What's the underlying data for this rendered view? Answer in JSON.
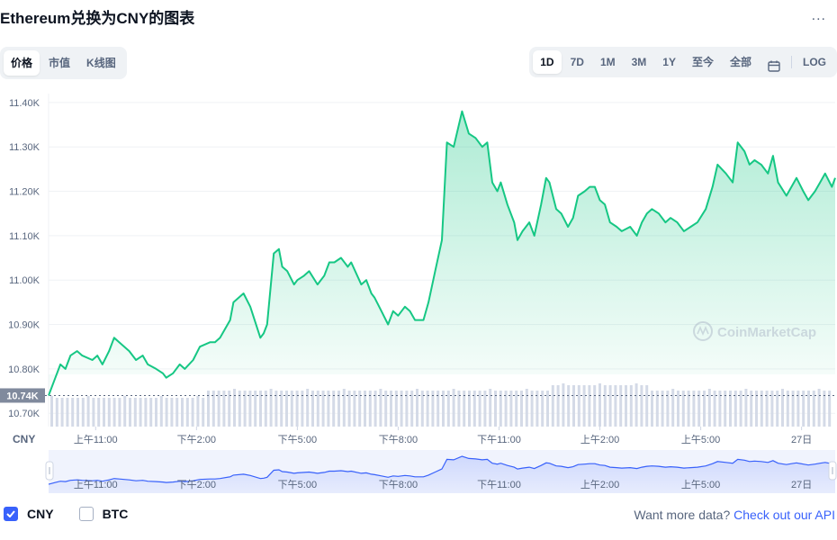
{
  "header": {
    "title": "Ethereum兑换为CNY的图表",
    "more_label": "..."
  },
  "view_tabs": [
    "价格",
    "市值",
    "K线图"
  ],
  "range_tabs": [
    "1D",
    "7D",
    "1M",
    "3M",
    "1Y",
    "至今",
    "全部"
  ],
  "log_label": "LOG",
  "watermark": "CoinMarketCap",
  "footer": {
    "options": [
      {
        "label": "CNY",
        "checked": true
      },
      {
        "label": "BTC",
        "checked": false
      }
    ],
    "promo_text": "Want more data?",
    "promo_link": "Check out our API"
  },
  "colors": {
    "line": "#16c784",
    "accent": "#3861fb",
    "nav_line": "#3861fb"
  },
  "chart_data": {
    "type": "area",
    "currency_label": "CNY",
    "current_price_label": "10.74K",
    "y_ticks": [
      "11.40K",
      "11.30K",
      "11.20K",
      "11.10K",
      "11.00K",
      "10.90K",
      "10.80K",
      "10.70K"
    ],
    "ylim": [
      10.67,
      11.42
    ],
    "x_ticks": [
      "上午11:00",
      "下午2:00",
      "下午5:00",
      "下午8:00",
      "下午11:00",
      "上午2:00",
      "上午5:00",
      "27日"
    ],
    "x_tick_hours": [
      11,
      14,
      17,
      20,
      23,
      26,
      29,
      32
    ],
    "xlim": [
      9.6,
      33.0
    ],
    "series": [
      {
        "x": [
          9.6,
          9.8,
          9.95,
          10.1,
          10.25,
          10.45,
          10.6,
          10.9,
          11.05,
          11.2,
          11.4,
          11.55,
          11.7,
          12.0,
          12.2,
          12.4,
          12.55,
          12.8,
          13.0,
          13.1,
          13.3,
          13.5,
          13.65,
          13.9,
          14.1,
          14.4,
          14.55,
          14.7,
          15.0,
          15.1,
          15.4,
          15.6,
          15.9,
          16.0,
          16.1,
          16.3,
          16.45,
          16.55,
          16.7,
          16.9,
          17.0,
          17.2,
          17.35,
          17.6,
          17.8,
          17.95,
          18.1,
          18.3,
          18.5,
          18.6,
          18.9,
          19.05,
          19.2,
          19.3,
          19.5,
          19.7,
          19.85,
          20.0,
          20.2,
          20.35,
          20.5,
          20.75,
          20.9,
          21.1,
          21.3,
          21.45,
          21.65,
          21.9,
          22.1,
          22.3,
          22.5,
          22.65,
          22.8,
          22.95,
          23.05,
          23.25,
          23.45,
          23.55,
          23.7,
          23.9,
          24.05,
          24.25,
          24.4,
          24.5,
          24.7,
          24.85,
          25.05,
          25.2,
          25.35,
          25.55,
          25.7,
          25.85,
          26.0,
          26.15,
          26.3,
          26.5,
          26.65,
          26.9,
          27.1,
          27.25,
          27.4,
          27.55,
          27.75,
          27.95,
          28.1,
          28.3,
          28.5,
          28.7,
          28.9,
          29.15,
          29.35,
          29.5,
          29.75,
          29.95,
          30.1,
          30.3,
          30.45,
          30.6,
          30.8,
          31.0,
          31.15,
          31.3,
          31.55,
          31.7,
          31.85,
          32.05,
          32.2,
          32.4,
          32.55,
          32.7,
          32.9,
          33.0
        ],
        "y": [
          10.74,
          10.78,
          10.81,
          10.8,
          10.83,
          10.84,
          10.83,
          10.82,
          10.83,
          10.81,
          10.84,
          10.87,
          10.86,
          10.84,
          10.82,
          10.83,
          10.81,
          10.8,
          10.79,
          10.78,
          10.79,
          10.81,
          10.8,
          10.82,
          10.85,
          10.86,
          10.86,
          10.87,
          10.91,
          10.95,
          10.97,
          10.94,
          10.87,
          10.88,
          10.9,
          11.06,
          11.07,
          11.03,
          11.02,
          10.99,
          11.0,
          11.01,
          11.02,
          10.99,
          11.01,
          11.04,
          11.04,
          11.05,
          11.03,
          11.04,
          10.99,
          11.0,
          10.97,
          10.96,
          10.93,
          10.9,
          10.93,
          10.92,
          10.94,
          10.93,
          10.91,
          10.91,
          10.95,
          11.02,
          11.09,
          11.31,
          11.3,
          11.38,
          11.33,
          11.32,
          11.3,
          11.31,
          11.22,
          11.2,
          11.22,
          11.17,
          11.13,
          11.09,
          11.11,
          11.13,
          11.1,
          11.17,
          11.23,
          11.22,
          11.16,
          11.15,
          11.12,
          11.14,
          11.19,
          11.2,
          11.21,
          11.21,
          11.18,
          11.17,
          11.13,
          11.12,
          11.11,
          11.12,
          11.1,
          11.13,
          11.15,
          11.16,
          11.15,
          11.13,
          11.14,
          11.13,
          11.11,
          11.12,
          11.13,
          11.16,
          11.21,
          11.26,
          11.24,
          11.22,
          11.31,
          11.29,
          11.26,
          11.27,
          11.26,
          11.24,
          11.28,
          11.22,
          11.19,
          11.21,
          11.23,
          11.2,
          11.18,
          11.2,
          11.22,
          11.24,
          11.21,
          11.23
        ],
        "volume_note": ""
      }
    ]
  }
}
